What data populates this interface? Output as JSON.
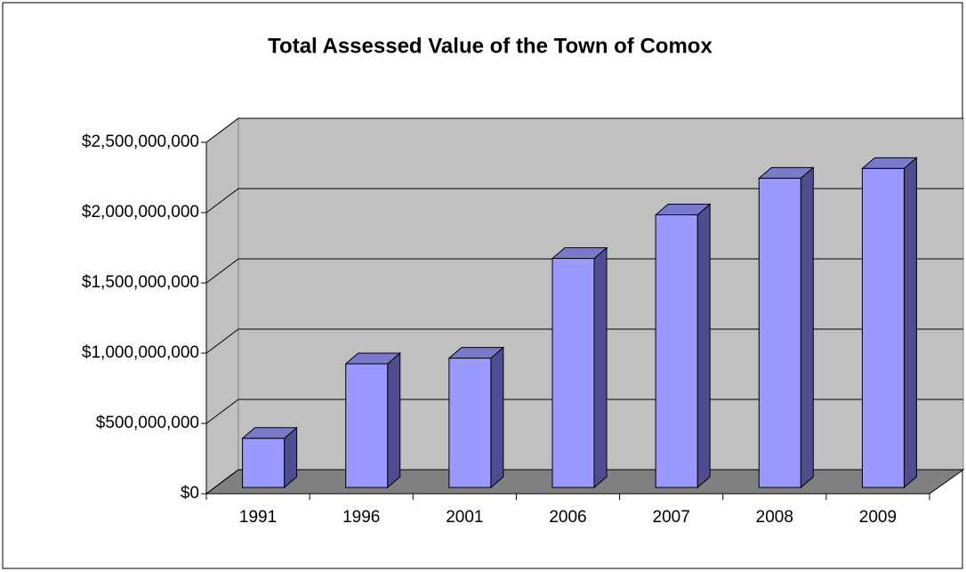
{
  "chart_data": {
    "type": "bar3d",
    "title": "Total  Assessed Value of the Town of Comox",
    "categories": [
      "1991",
      "1996",
      "2001",
      "2006",
      "2007",
      "2008",
      "2009"
    ],
    "values": [
      350000000,
      880000000,
      920000000,
      1630000000,
      1940000000,
      2200000000,
      2270000000
    ],
    "color": "#9999ff",
    "ylim": [
      0,
      2500000000
    ],
    "yticks": [
      {
        "value": 0,
        "label": "$0"
      },
      {
        "value": 500000000,
        "label": "$500,000,000"
      },
      {
        "value": 1000000000,
        "label": "$1,000,000,000"
      },
      {
        "value": 1500000000,
        "label": "$1,500,000,000"
      },
      {
        "value": 2000000000,
        "label": "$2,000,000,000"
      },
      {
        "value": 2500000000,
        "label": "$2,500,000,000"
      }
    ],
    "grid": true
  }
}
